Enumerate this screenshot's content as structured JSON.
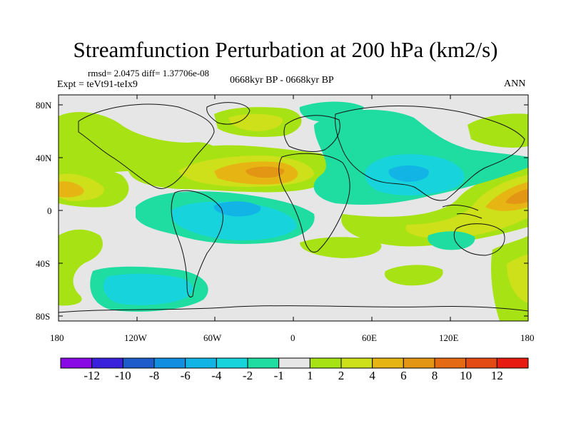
{
  "plot": {
    "title": "Streamfunction Perturbation at 200 hPa (km2/s)",
    "stats_text": "rmsd= 2.0475 diff= 1.37706e-08",
    "left_label": "Expt = teVt91-teIx9",
    "center_label": "0668kyr BP - 0668kyr BP",
    "right_label": "ANN"
  },
  "map": {
    "lat_labels": [
      "80N",
      "40N",
      "0",
      "40S",
      "80S"
    ],
    "lon_labels": [
      "180",
      "120W",
      "60W",
      "0",
      "60E",
      "120E",
      "180"
    ],
    "lat_range": [
      -80,
      80
    ],
    "lon_range": [
      -180,
      180
    ]
  },
  "colorbar": {
    "labels": [
      "-12",
      "-10",
      "-8",
      "-6",
      "-4",
      "-2",
      "-1",
      "1",
      "2",
      "4",
      "6",
      "8",
      "10",
      "12"
    ],
    "colors": [
      "#8a0ae6",
      "#3a22dd",
      "#1e5ccc",
      "#118ee0",
      "#12b4e6",
      "#17d4dc",
      "#1fdca0",
      "#e6e6e6",
      "#a7e314",
      "#cde01a",
      "#e6b514",
      "#e39614",
      "#e46a14",
      "#e44a14",
      "#e81b10"
    ]
  },
  "colors": {
    "neg_strong": "#12b4e6",
    "neg_weak": "#17d4dc",
    "neg_light": "#1fdca0",
    "neutral": "#e6e6e6",
    "pos_weak": "#a7e314",
    "pos_mid": "#cde01a",
    "pos_strong": "#e6b514",
    "pos_peak": "#e39614"
  }
}
